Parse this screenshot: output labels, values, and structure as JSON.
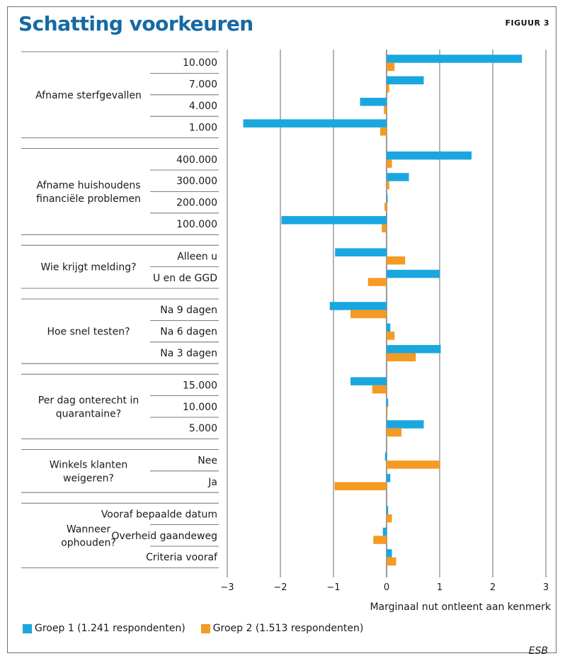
{
  "header": {
    "title": "Schatting voorkeuren",
    "figure_label": "FIGUUR 3"
  },
  "source": "ESB",
  "colors": {
    "group1": "#1aa7e0",
    "group2": "#f59a23",
    "title": "#156aa3",
    "grid": "#444444"
  },
  "chart_data": {
    "type": "bar",
    "orientation": "horizontal",
    "title": "Schatting voorkeuren",
    "xlabel": "Marginaal nut ontleent aan kenmerk",
    "xlim": [
      -3,
      3
    ],
    "xticks": [
      "−3",
      "−2",
      "−1",
      "0",
      "1",
      "2",
      "3"
    ],
    "grid": true,
    "legend_position": "bottom",
    "series": [
      {
        "name": "Groep 1 (1.241 respondenten)",
        "key": "g1"
      },
      {
        "name": "Groep 2 (1.513 respondenten)",
        "key": "g2"
      }
    ],
    "groups": [
      {
        "label": [
          "Afname sterfgevallen"
        ],
        "items": [
          {
            "label": "10.000",
            "g1": 2.55,
            "g2": 0.15
          },
          {
            "label": "7.000",
            "g1": 0.7,
            "g2": 0.05
          },
          {
            "label": "4.000",
            "g1": -0.5,
            "g2": -0.05
          },
          {
            "label": "1.000",
            "g1": -2.7,
            "g2": -0.12
          }
        ]
      },
      {
        "label": [
          "Afname huishoudens",
          "financiële problemen"
        ],
        "items": [
          {
            "label": "400.000",
            "g1": 1.6,
            "g2": 0.1
          },
          {
            "label": "300.000",
            "g1": 0.42,
            "g2": 0.05
          },
          {
            "label": "200.000",
            "g1": 0.02,
            "g2": -0.04
          },
          {
            "label": "100.000",
            "g1": -1.98,
            "g2": -0.09
          }
        ]
      },
      {
        "label": [
          "Wie krijgt melding?"
        ],
        "items": [
          {
            "label": "Alleen u",
            "g1": -0.97,
            "g2": 0.35
          },
          {
            "label": "U en de GGD",
            "g1": 1.0,
            "g2": -0.35
          }
        ]
      },
      {
        "label": [
          "Hoe snel testen?"
        ],
        "items": [
          {
            "label": "Na 9 dagen",
            "g1": -1.07,
            "g2": -0.68
          },
          {
            "label": "Na 6 dagen",
            "g1": 0.07,
            "g2": 0.15
          },
          {
            "label": "Na 3 dagen",
            "g1": 1.02,
            "g2": 0.55
          }
        ]
      },
      {
        "label": [
          "Per dag onterecht in",
          "quarantaine?"
        ],
        "items": [
          {
            "label": "15.000",
            "g1": -0.68,
            "g2": -0.27
          },
          {
            "label": "10.000",
            "g1": 0.03,
            "g2": 0.0
          },
          {
            "label": "5.000",
            "g1": 0.7,
            "g2": 0.28
          }
        ]
      },
      {
        "label": [
          "Winkels klanten",
          "weigeren?"
        ],
        "items": [
          {
            "label": "Nee",
            "g1": -0.03,
            "g2": 1.0
          },
          {
            "label": "Ja",
            "g1": 0.07,
            "g2": -0.98
          }
        ]
      },
      {
        "label": [
          "Wanneer",
          "ophouden?"
        ],
        "items": [
          {
            "label": "Vooraf bepaalde datum",
            "g1": 0.03,
            "g2": 0.1
          },
          {
            "label": "Overheid gaandeweg",
            "g1": -0.07,
            "g2": -0.25
          },
          {
            "label": "Criteria vooraf",
            "g1": 0.1,
            "g2": 0.18
          }
        ]
      }
    ]
  }
}
